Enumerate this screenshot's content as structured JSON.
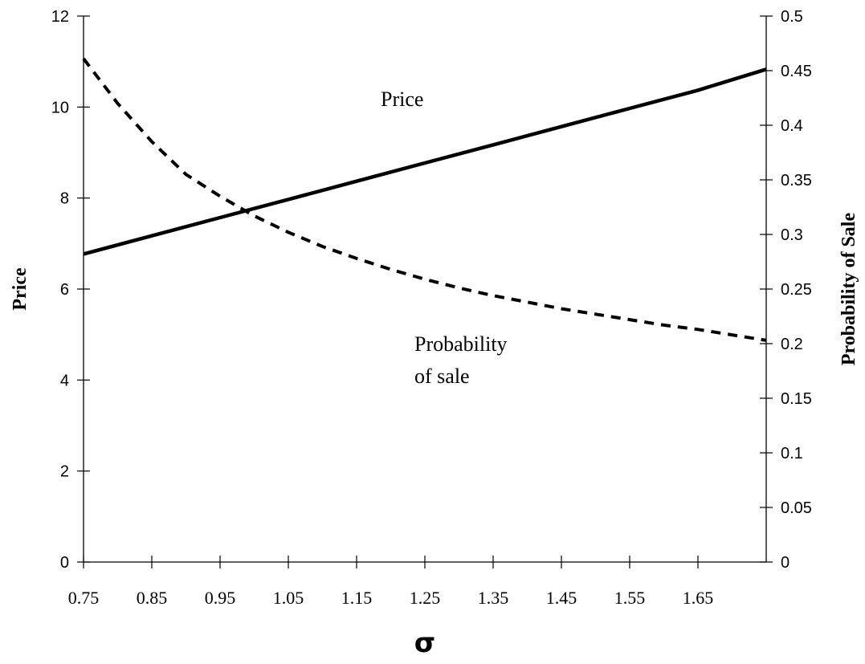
{
  "chart_data": {
    "type": "line",
    "xlabel": "σ",
    "ylabel": "Price",
    "y2label": "Probability of Sale",
    "xlim": [
      0.75,
      1.75
    ],
    "ylim": [
      0,
      12
    ],
    "y2lim": [
      0,
      0.5
    ],
    "x_ticks": [
      "0.75",
      "0.85",
      "0.95",
      "1.05",
      "1.15",
      "1.25",
      "1.35",
      "1.45",
      "1.55",
      "1.65"
    ],
    "y_ticks": [
      "0",
      "2",
      "4",
      "6",
      "8",
      "10",
      "12"
    ],
    "y2_ticks": [
      "0",
      "0.05",
      "0.1",
      "0.15",
      "0.2",
      "0.25",
      "0.3",
      "0.35",
      "0.4",
      "0.45",
      "0.5"
    ],
    "grid": false,
    "series": [
      {
        "name": "Price",
        "axis": "left",
        "style": "solid",
        "x": [
          0.75,
          0.85,
          0.95,
          1.05,
          1.15,
          1.25,
          1.35,
          1.45,
          1.55,
          1.65,
          1.75
        ],
        "values": [
          6.77,
          7.17,
          7.57,
          7.97,
          8.37,
          8.77,
          9.17,
          9.57,
          9.97,
          10.37,
          10.83
        ]
      },
      {
        "name": "Probability of sale",
        "axis": "right",
        "style": "dashed",
        "x": [
          0.75,
          0.8,
          0.85,
          0.9,
          0.95,
          1.0,
          1.05,
          1.1,
          1.15,
          1.2,
          1.25,
          1.3,
          1.35,
          1.4,
          1.45,
          1.5,
          1.55,
          1.6,
          1.65,
          1.7,
          1.75
        ],
        "values": [
          0.461,
          0.42,
          0.385,
          0.355,
          0.335,
          0.317,
          0.302,
          0.289,
          0.278,
          0.268,
          0.259,
          0.251,
          0.244,
          0.238,
          0.232,
          0.227,
          0.222,
          0.217,
          0.213,
          0.208,
          0.203
        ]
      }
    ],
    "annotations": {
      "price_label": "Price",
      "prob_label_line1": "Probability",
      "prob_label_line2": "of sale"
    }
  }
}
